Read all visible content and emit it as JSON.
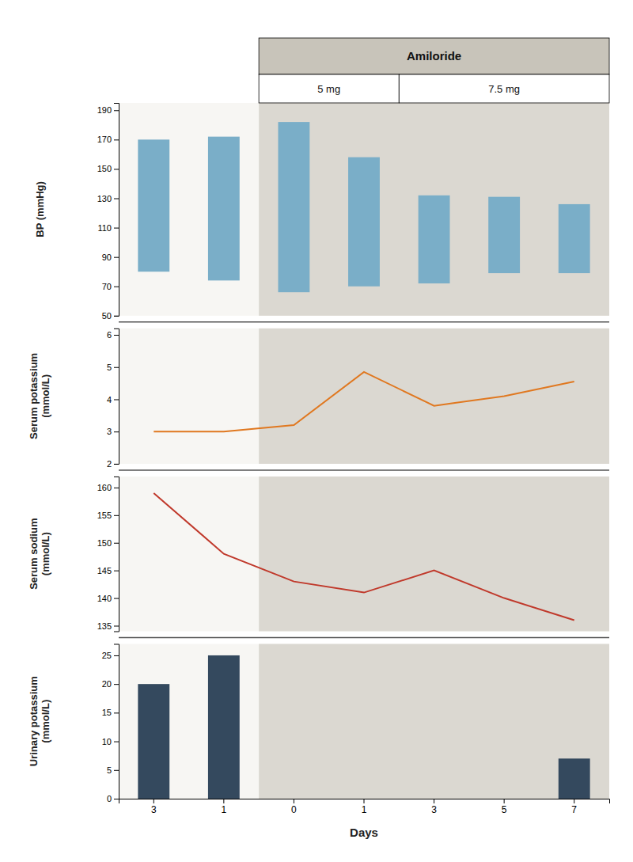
{
  "chart_data": [
    {
      "type": "floating_bar",
      "categories": [
        "3",
        "1",
        "0",
        "1",
        "3",
        "5",
        "7"
      ],
      "high": [
        170,
        172,
        182,
        158,
        132,
        131,
        126
      ],
      "low": [
        80,
        74,
        66,
        70,
        72,
        79,
        79
      ],
      "color": "#7aaec8",
      "ylabel": "BP (mmHg)",
      "ylim": [
        50,
        195
      ],
      "yticks": [
        50,
        70,
        90,
        110,
        130,
        150,
        170,
        190
      ],
      "tick_labels": "y",
      "annotations": [
        {
          "text": "Amiloride",
          "start": 2,
          "end": 6,
          "color": "#c8c4ba",
          "parts": [
            {
              "text": "5 mg",
              "start": 2,
              "end": 3
            },
            {
              "text": "7.5 mg",
              "start": 4,
              "end": 6
            }
          ]
        }
      ]
    },
    {
      "type": "line",
      "categories": [
        "3",
        "1",
        "0",
        "1",
        "3",
        "5",
        "7"
      ],
      "values": [
        3.0,
        3.0,
        3.2,
        4.85,
        3.8,
        4.1,
        4.55
      ],
      "color": "#e07820",
      "ylabel": "Serum potassium\n(mmol/L)",
      "ylim": [
        2,
        6.2
      ],
      "yticks": [
        2,
        3,
        4,
        5,
        6
      ],
      "tick_labels": "y"
    },
    {
      "type": "line",
      "categories": [
        "3",
        "1",
        "0",
        "1",
        "3",
        "5",
        "7"
      ],
      "values": [
        159,
        148,
        143,
        141,
        145,
        140,
        136
      ],
      "color": "#c0392b",
      "ylabel": "Serum sodium\n(mmol/L)",
      "ylim": [
        134,
        162
      ],
      "yticks": [
        135,
        140,
        145,
        150,
        155,
        160
      ],
      "tick_labels": "y"
    },
    {
      "type": "bar",
      "categories": [
        "3",
        "1",
        "0",
        "1",
        "3",
        "5",
        "7"
      ],
      "values": [
        20,
        25,
        0,
        0,
        0,
        0,
        7
      ],
      "color": "#34495e",
      "xlabel": "Days",
      "ylabel": "Urinary potassium\n(mmol/L)",
      "ylim": [
        0,
        27
      ],
      "yticks": [
        0,
        5,
        10,
        15,
        20,
        25
      ]
    }
  ]
}
